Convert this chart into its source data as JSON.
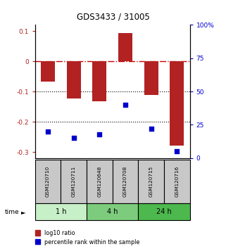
{
  "title": "GDS3433 / 31005",
  "samples": [
    "GSM120710",
    "GSM120711",
    "GSM120648",
    "GSM120708",
    "GSM120715",
    "GSM120716"
  ],
  "log10_ratio": [
    -0.068,
    -0.122,
    -0.132,
    0.092,
    -0.112,
    -0.278
  ],
  "percentile_rank": [
    20,
    15,
    18,
    40,
    22,
    5
  ],
  "groups": [
    {
      "label": "1 h",
      "start": 0,
      "end": 2,
      "color": "#c8f0c8"
    },
    {
      "label": "4 h",
      "start": 2,
      "end": 4,
      "color": "#7dcc7d"
    },
    {
      "label": "24 h",
      "start": 4,
      "end": 6,
      "color": "#4db84d"
    }
  ],
  "bar_color": "#b22222",
  "dot_color": "#0000cc",
  "ylim_left": [
    -0.32,
    0.12
  ],
  "ylim_right": [
    0,
    100
  ],
  "yticks_left": [
    0.1,
    0.0,
    -0.1,
    -0.2,
    -0.3
  ],
  "yticks_right": [
    100,
    75,
    50,
    25,
    0
  ],
  "hline_zero_color": "#cc0000",
  "hline_dotted_color": "#000000",
  "time_label": "time",
  "legend_red": "log10 ratio",
  "legend_blue": "percentile rank within the sample",
  "bg_color": "#ffffff",
  "sample_bg_color": "#c8c8c8"
}
